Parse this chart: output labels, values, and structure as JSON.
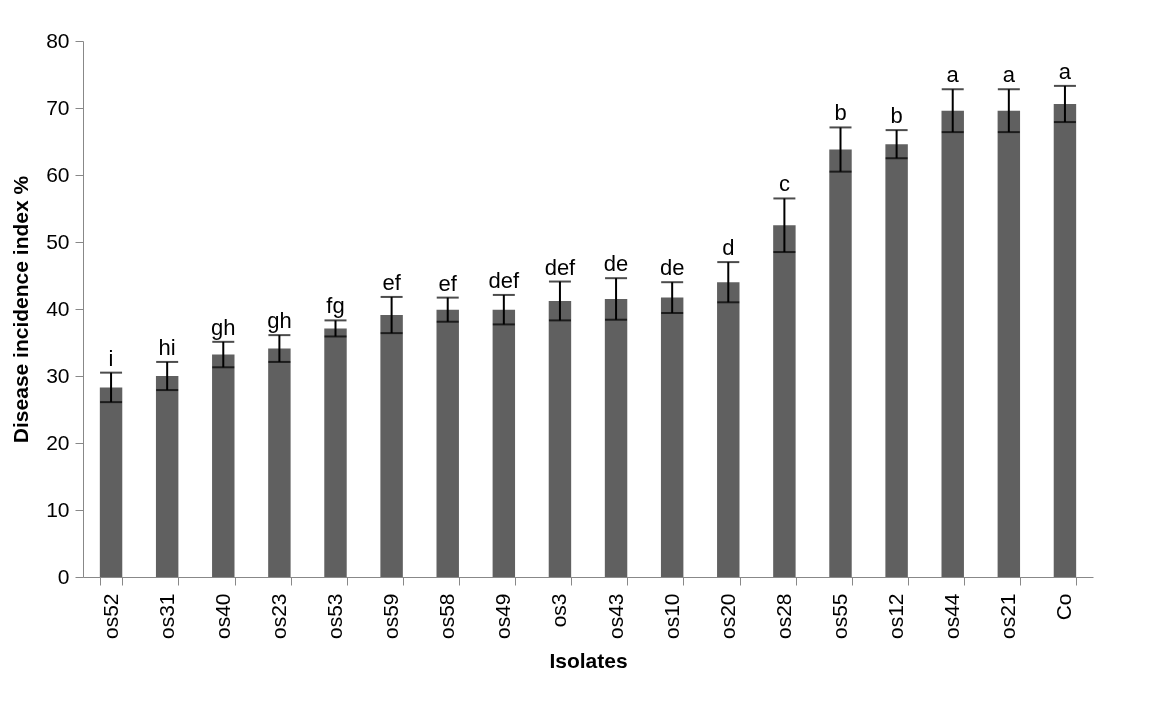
{
  "chart_data": {
    "type": "bar",
    "xlabel": "Isolates",
    "ylabel": "Disease incidence index %",
    "categories": [
      "os52",
      "os31",
      "os40",
      "os23",
      "os53",
      "os59",
      "os58",
      "os49",
      "os3",
      "os43",
      "os10",
      "os20",
      "os28",
      "os55",
      "os12",
      "os44",
      "os21",
      "Co"
    ],
    "values": [
      28.3,
      30.0,
      33.2,
      34.1,
      37.1,
      39.1,
      39.9,
      39.9,
      41.2,
      41.5,
      41.7,
      44.0,
      52.5,
      63.8,
      64.6,
      69.6,
      69.6,
      70.6
    ],
    "errors": [
      2.2,
      2.1,
      1.9,
      2.0,
      1.2,
      2.7,
      1.8,
      2.2,
      2.9,
      3.1,
      2.3,
      3.0,
      4.0,
      3.3,
      2.1,
      3.2,
      3.2,
      2.7
    ],
    "color": "#606060",
    "ylim": [
      0,
      80
    ],
    "yticks": [
      0,
      10,
      20,
      30,
      40,
      50,
      60,
      70,
      80
    ],
    "grid": false,
    "annotations": [
      {
        "text": "i",
        "x": "os52",
        "y": 30.5
      },
      {
        "text": "hi",
        "x": "os31",
        "y": 32.1
      },
      {
        "text": "gh",
        "x": "os40",
        "y": 35.1
      },
      {
        "text": "gh",
        "x": "os23",
        "y": 36.1
      },
      {
        "text": "fg",
        "x": "os53",
        "y": 38.3
      },
      {
        "text": "ef",
        "x": "os59",
        "y": 41.8
      },
      {
        "text": "ef",
        "x": "os58",
        "y": 41.7
      },
      {
        "text": "def",
        "x": "os49",
        "y": 42.1
      },
      {
        "text": "def",
        "x": "os3",
        "y": 44.1
      },
      {
        "text": "de",
        "x": "os43",
        "y": 44.6
      },
      {
        "text": "de",
        "x": "os10",
        "y": 44.0
      },
      {
        "text": "d",
        "x": "os20",
        "y": 47.0
      },
      {
        "text": "c",
        "x": "os28",
        "y": 56.5
      },
      {
        "text": "b",
        "x": "os55",
        "y": 67.1
      },
      {
        "text": "b",
        "x": "os12",
        "y": 66.7
      },
      {
        "text": "a",
        "x": "os44",
        "y": 72.8
      },
      {
        "text": "a",
        "x": "os21",
        "y": 72.8
      },
      {
        "text": "a",
        "x": "Co",
        "y": 73.3
      }
    ]
  }
}
